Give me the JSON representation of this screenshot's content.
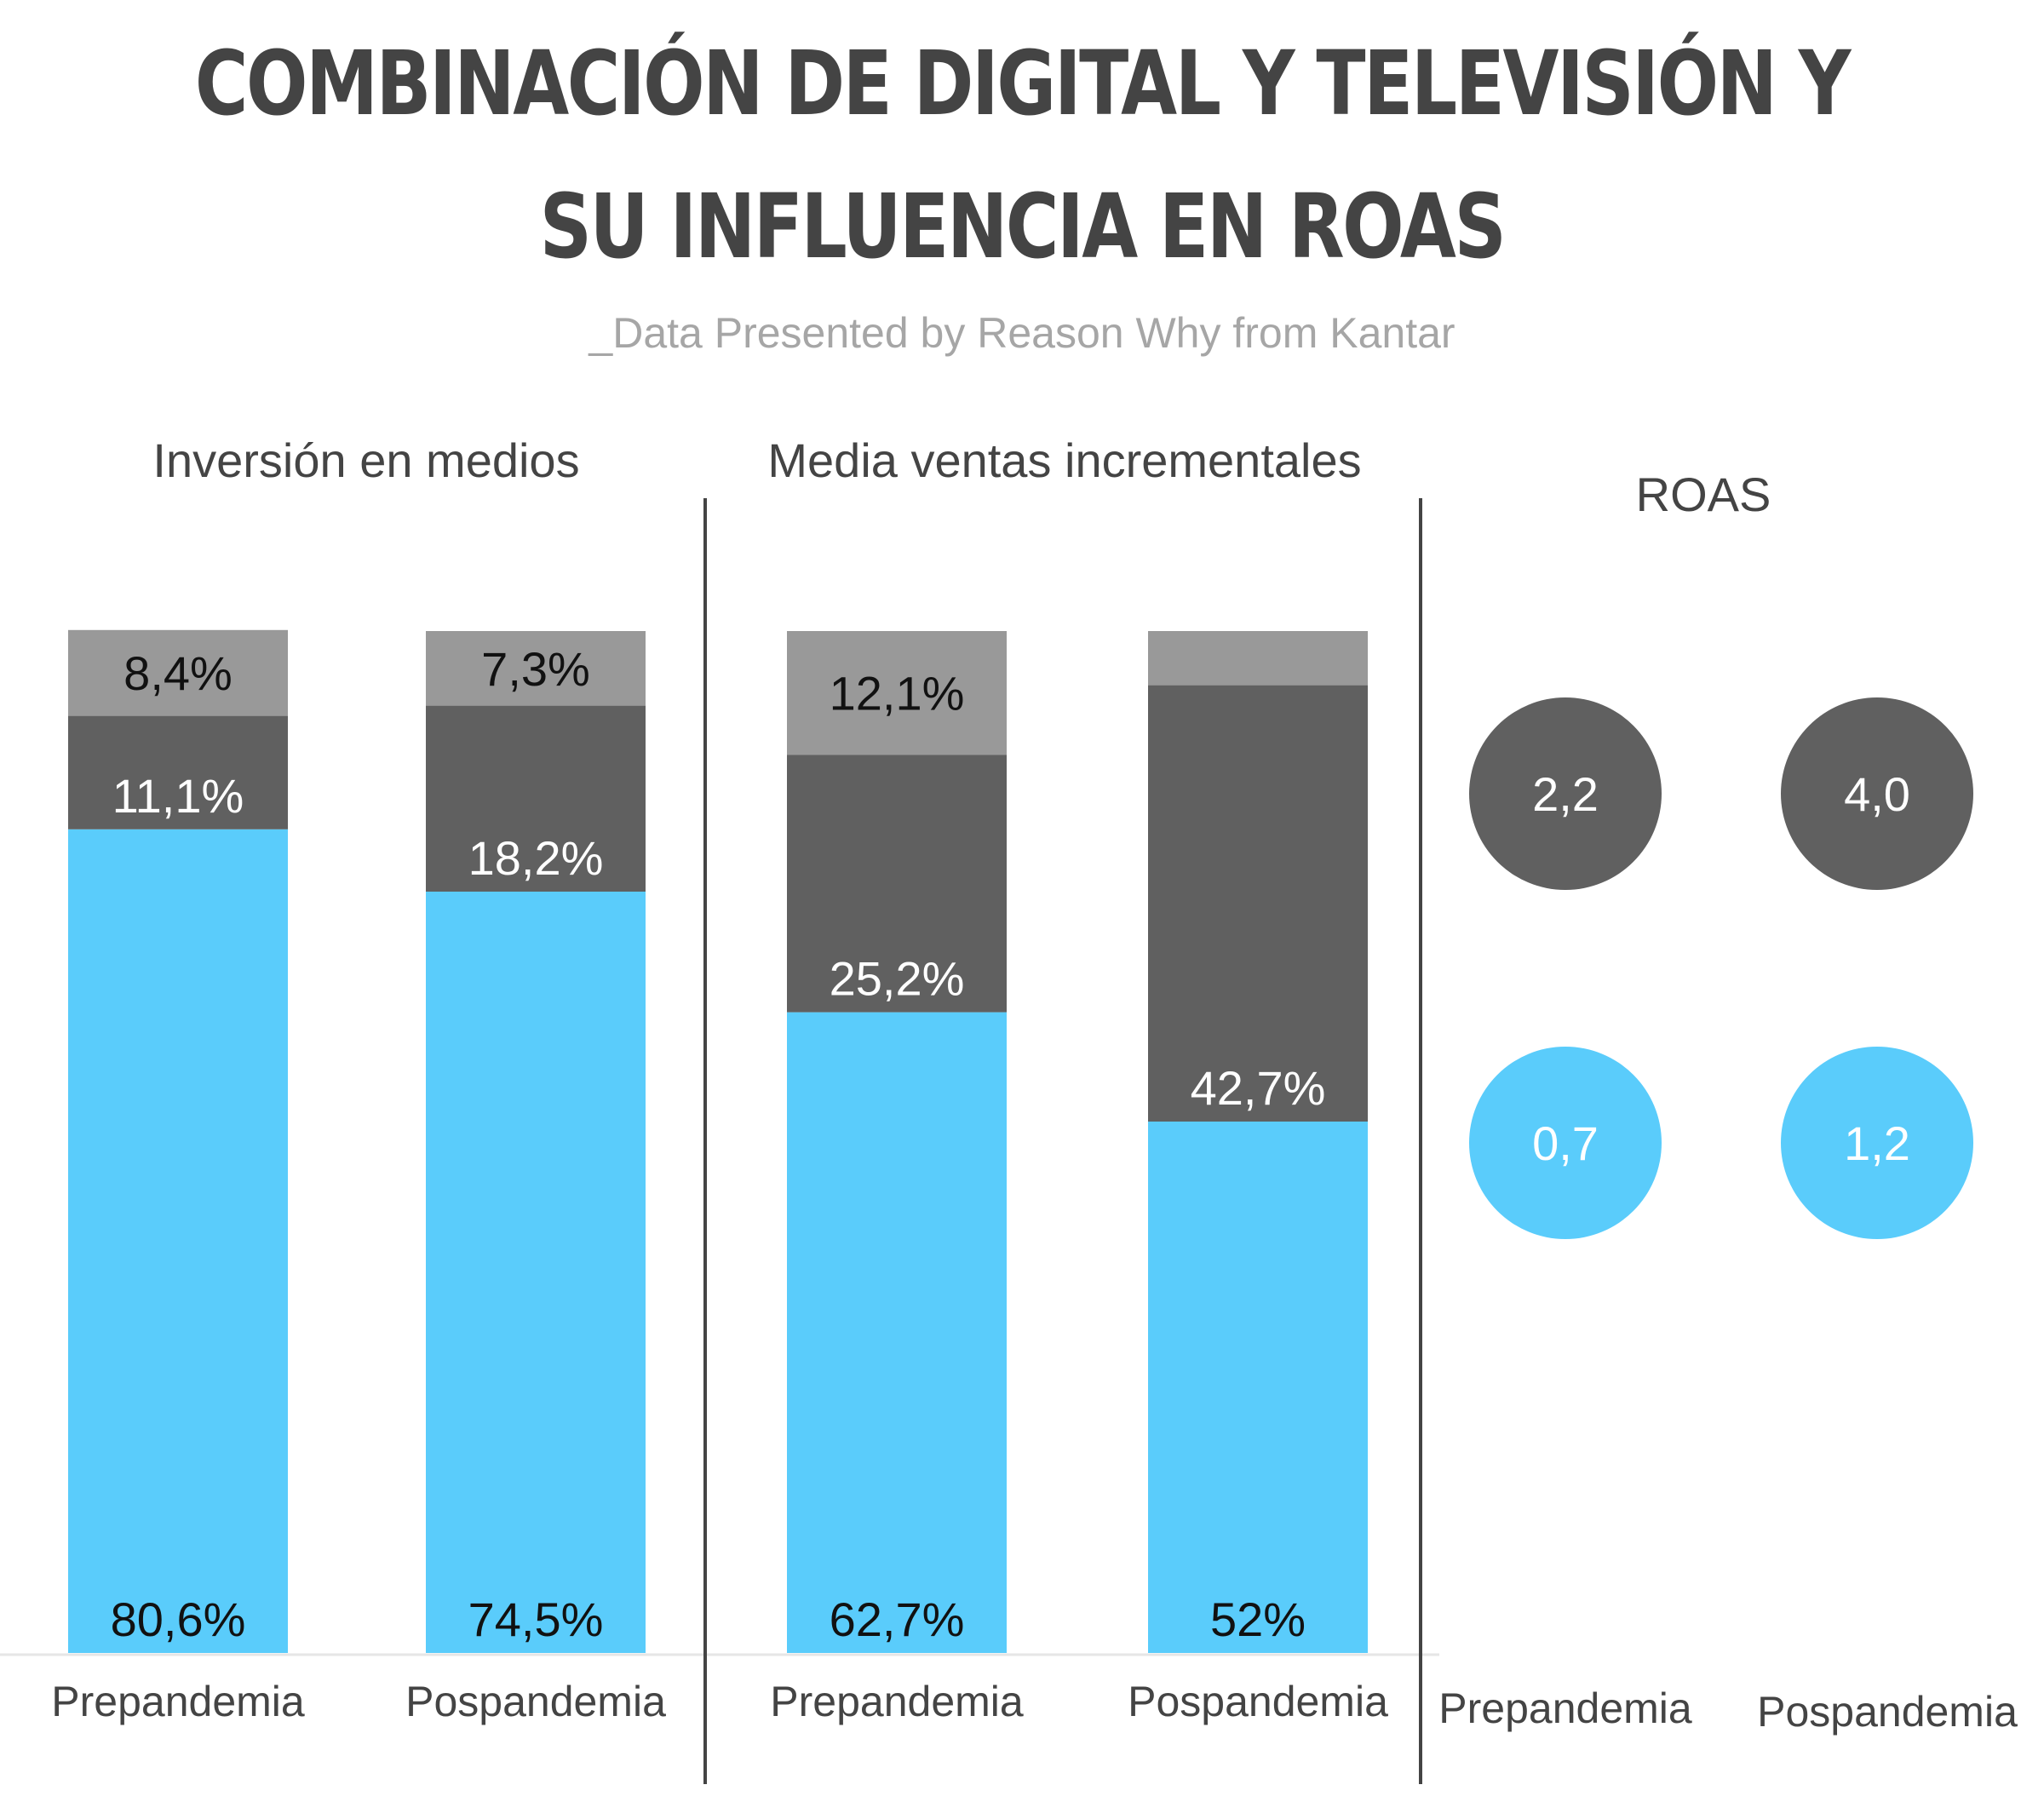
{
  "title": "COMBINACIÓN DE DIGITAL Y TELEVISIÓN Y SU INFLUENCIA EN ROAS",
  "subtitle": "_Data Presented by Reason Why from Kantar",
  "colors": {
    "light_gray": "#999999",
    "dark_gray": "#606060",
    "blue": "#5accfb",
    "title": "#444444",
    "subtitle": "#a6a6a6",
    "divider": "#444444"
  },
  "chart_data": [
    {
      "type": "bar",
      "stacked": true,
      "title": "Inversión en medios",
      "categories": [
        "Prepandemia",
        "Pospandemia"
      ],
      "series": [
        {
          "values": [
            80.6,
            74.5
          ],
          "labels": [
            "80,6%",
            "74,5%"
          ],
          "color": "#5accfb"
        },
        {
          "values": [
            11.1,
            18.2
          ],
          "labels": [
            "11,1%",
            "18,2%"
          ],
          "color": "#606060"
        },
        {
          "values": [
            8.4,
            7.3
          ],
          "labels": [
            "8,4%",
            "7,3%"
          ],
          "color": "#999999"
        }
      ],
      "ylim": [
        0,
        100
      ],
      "grid": false,
      "legend": "none"
    },
    {
      "type": "bar",
      "stacked": true,
      "title": "Media ventas incrementales",
      "categories": [
        "Prepandemia",
        "Pospandemia"
      ],
      "series": [
        {
          "values": [
            62.7,
            52.0
          ],
          "labels": [
            "62,7%",
            "52%"
          ],
          "color": "#5accfb"
        },
        {
          "values": [
            25.2,
            42.7
          ],
          "labels": [
            "25,2%",
            "42,7%"
          ],
          "color": "#606060"
        },
        {
          "values": [
            12.1,
            5.3
          ],
          "labels": [
            "12,1%",
            ""
          ],
          "color": "#999999"
        }
      ],
      "ylim": [
        0,
        100
      ],
      "grid": false,
      "legend": "none"
    },
    {
      "type": "scatter",
      "title": "ROAS",
      "categories": [
        "Prepandemia",
        "Pospandemia"
      ],
      "series": [
        {
          "values": [
            2.2,
            4.0
          ],
          "labels": [
            "2,2",
            "4,0"
          ],
          "color": "#606060"
        },
        {
          "values": [
            0.7,
            1.2
          ],
          "labels": [
            "0,7",
            "1,2"
          ],
          "color": "#5accfb"
        }
      ],
      "grid": false,
      "legend": "none"
    }
  ]
}
